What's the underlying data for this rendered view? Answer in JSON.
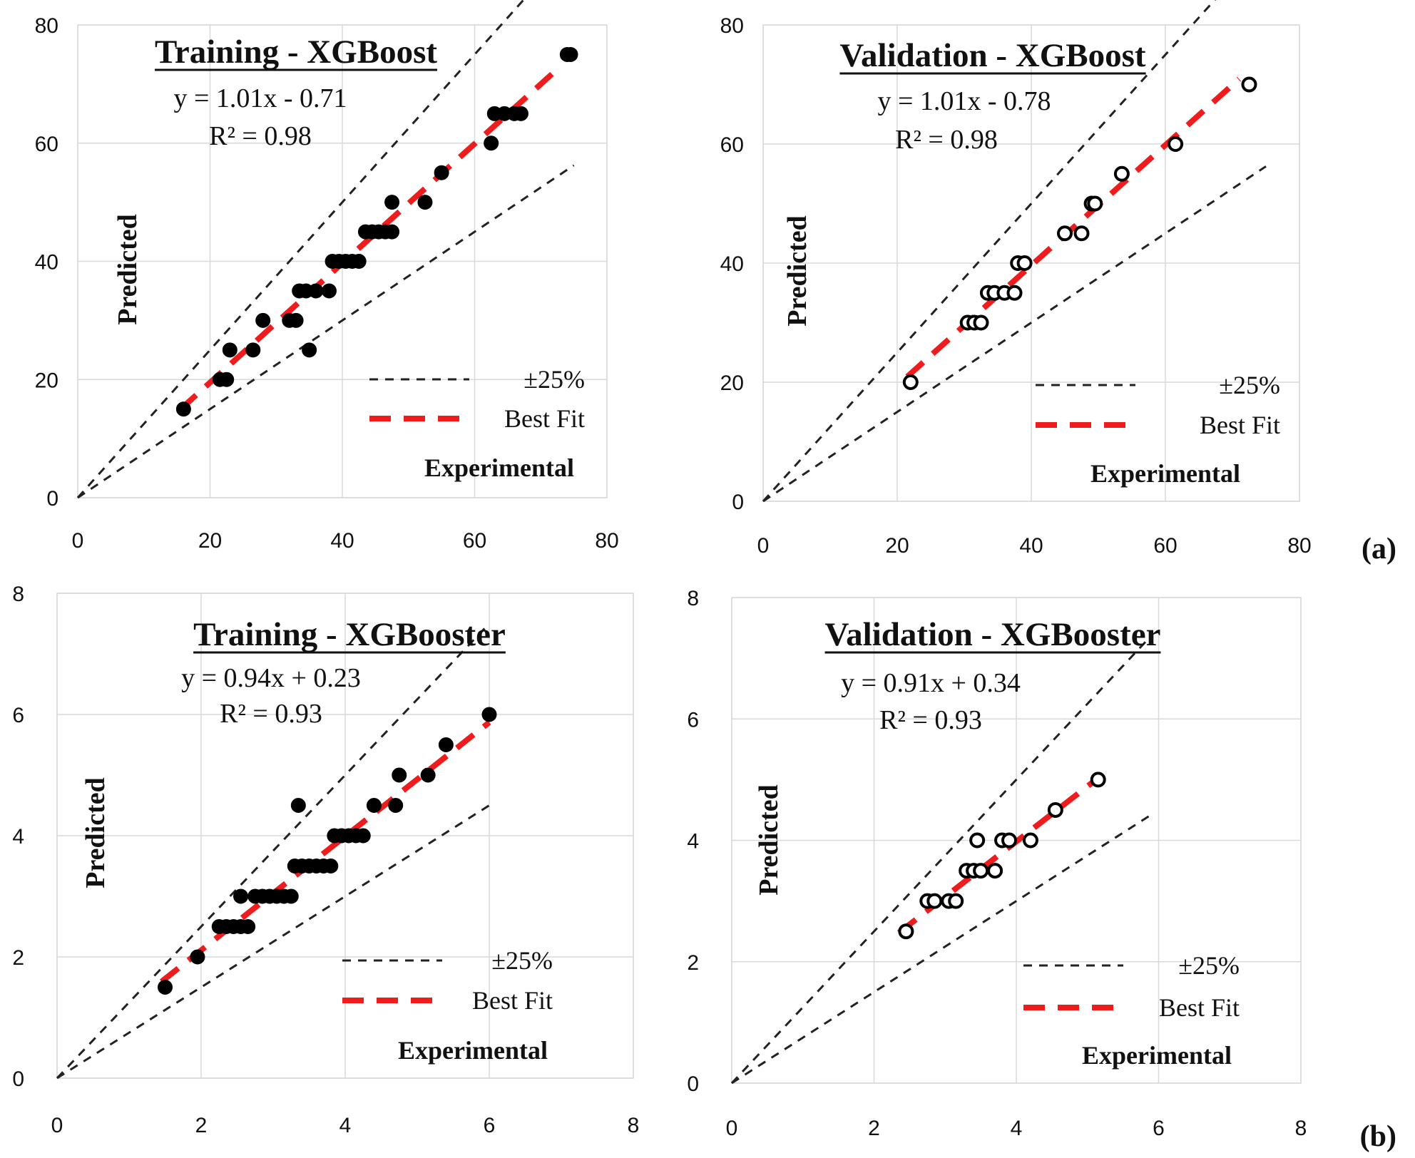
{
  "chart_data": [
    {
      "type": "scatter",
      "title": "Training - XGBoost",
      "equation": "y = 1.01x - 0.71",
      "r2": "R² = 0.98",
      "xlabel": "Experimental",
      "ylabel": "Predicted",
      "xlim": [
        0,
        80
      ],
      "ylim": [
        0,
        80
      ],
      "xticks": [
        "0",
        "20",
        "40",
        "60",
        "80"
      ],
      "yticks": [
        "0",
        "20",
        "40",
        "60",
        "80"
      ],
      "marker": "filled",
      "band_pct": 25,
      "band_x_end": 75,
      "fit": {
        "slope": 1.01,
        "intercept": -0.71,
        "x_range": [
          15.5,
          73
        ]
      },
      "legend": {
        "band_label": "±25%",
        "fit_label": "Best Fit"
      },
      "points": [
        [
          16,
          15
        ],
        [
          21.5,
          20
        ],
        [
          22.5,
          20
        ],
        [
          23,
          25
        ],
        [
          26.5,
          25
        ],
        [
          28,
          30
        ],
        [
          32,
          30
        ],
        [
          33,
          30
        ],
        [
          33.5,
          35
        ],
        [
          34.5,
          35
        ],
        [
          35,
          25
        ],
        [
          36,
          35
        ],
        [
          38,
          35
        ],
        [
          38.5,
          40
        ],
        [
          39.5,
          40
        ],
        [
          40.5,
          40
        ],
        [
          41.5,
          40
        ],
        [
          42.5,
          40
        ],
        [
          43.5,
          45
        ],
        [
          44.5,
          45
        ],
        [
          45.5,
          45
        ],
        [
          46.5,
          45
        ],
        [
          47.5,
          45
        ],
        [
          47.5,
          50
        ],
        [
          52.5,
          50
        ],
        [
          55,
          55
        ],
        [
          62.5,
          60
        ],
        [
          63,
          65
        ],
        [
          64.5,
          65
        ],
        [
          66,
          65
        ],
        [
          67,
          65
        ],
        [
          74,
          75
        ],
        [
          74.5,
          75
        ]
      ],
      "panel_label": ""
    },
    {
      "type": "scatter",
      "title": "Validation - XGBoost",
      "equation": "y = 1.01x - 0.78",
      "r2": "R² = 0.98",
      "xlabel": "Experimental",
      "ylabel": "Predicted",
      "xlim": [
        0,
        80
      ],
      "ylim": [
        0,
        80
      ],
      "xticks": [
        "0",
        "20",
        "40",
        "60",
        "80"
      ],
      "yticks": [
        "0",
        "20",
        "40",
        "60",
        "80"
      ],
      "marker": "open",
      "band_pct": 25,
      "band_x_end": 75,
      "fit": {
        "slope": 1.01,
        "intercept": -0.78,
        "x_range": [
          21.5,
          71
        ]
      },
      "legend": {
        "band_label": "±25%",
        "fit_label": "Best Fit"
      },
      "points": [
        [
          22,
          20
        ],
        [
          30.5,
          30
        ],
        [
          31.5,
          30
        ],
        [
          32.5,
          30
        ],
        [
          33.5,
          35
        ],
        [
          34.5,
          35
        ],
        [
          36,
          35
        ],
        [
          37.5,
          35
        ],
        [
          38,
          40
        ],
        [
          39,
          40
        ],
        [
          45,
          45
        ],
        [
          47.5,
          45
        ],
        [
          49,
          50
        ],
        [
          49.5,
          50
        ],
        [
          53.5,
          55
        ],
        [
          61.5,
          60
        ],
        [
          72.5,
          70
        ]
      ],
      "panel_label": "(a)"
    },
    {
      "type": "scatter",
      "title": "Training - XGBooster",
      "equation": "y = 0.94x + 0.23",
      "r2": "R² = 0.93",
      "xlabel": "Experimental",
      "ylabel": "Predicted",
      "xlim": [
        0,
        8
      ],
      "ylim": [
        0,
        8
      ],
      "xticks": [
        "0",
        "2",
        "4",
        "6",
        "8"
      ],
      "yticks": [
        "0",
        "2",
        "4",
        "6",
        "8"
      ],
      "marker": "filled",
      "band_pct": 25,
      "band_x_end": 6,
      "fit": {
        "slope": 0.94,
        "intercept": 0.23,
        "x_range": [
          1.45,
          6
        ]
      },
      "legend": {
        "band_label": "±25%",
        "fit_label": "Best Fit"
      },
      "points": [
        [
          1.5,
          1.5
        ],
        [
          1.95,
          2
        ],
        [
          2.25,
          2.5
        ],
        [
          2.35,
          2.5
        ],
        [
          2.45,
          2.5
        ],
        [
          2.55,
          2.5
        ],
        [
          2.65,
          2.5
        ],
        [
          2.55,
          3
        ],
        [
          2.75,
          3
        ],
        [
          2.85,
          3
        ],
        [
          2.95,
          3
        ],
        [
          3.05,
          3
        ],
        [
          3.15,
          3
        ],
        [
          3.25,
          3
        ],
        [
          3.3,
          3.5
        ],
        [
          3.4,
          3.5
        ],
        [
          3.5,
          3.5
        ],
        [
          3.6,
          3.5
        ],
        [
          3.7,
          3.5
        ],
        [
          3.8,
          3.5
        ],
        [
          3.35,
          4.5
        ],
        [
          3.85,
          4
        ],
        [
          3.95,
          4
        ],
        [
          4.05,
          4
        ],
        [
          4.15,
          4
        ],
        [
          4.25,
          4
        ],
        [
          4.4,
          4.5
        ],
        [
          4.7,
          4.5
        ],
        [
          4.75,
          5
        ],
        [
          5.15,
          5
        ],
        [
          5.4,
          5.5
        ],
        [
          6,
          6
        ]
      ],
      "panel_label": ""
    },
    {
      "type": "scatter",
      "title": "Validation - XGBooster",
      "equation": "y = 0.91x + 0.34",
      "r2": "R² = 0.93",
      "xlabel": "Experimental",
      "ylabel": "Predicted",
      "xlim": [
        0,
        8
      ],
      "ylim": [
        0,
        8
      ],
      "xticks": [
        "0",
        "2",
        "4",
        "6",
        "8"
      ],
      "yticks": [
        "0",
        "2",
        "4",
        "6",
        "8"
      ],
      "marker": "open",
      "band_pct": 25,
      "band_x_end": 5.9,
      "fit": {
        "slope": 0.91,
        "intercept": 0.34,
        "x_range": [
          2.35,
          5.1
        ]
      },
      "legend": {
        "band_label": "±25%",
        "fit_label": "Best Fit"
      },
      "points": [
        [
          2.45,
          2.5
        ],
        [
          2.75,
          3
        ],
        [
          2.85,
          3
        ],
        [
          3.05,
          3
        ],
        [
          3.15,
          3
        ],
        [
          3.3,
          3.5
        ],
        [
          3.4,
          3.5
        ],
        [
          3.5,
          3.5
        ],
        [
          3.7,
          3.5
        ],
        [
          3.45,
          4
        ],
        [
          3.8,
          4
        ],
        [
          3.9,
          4
        ],
        [
          4.2,
          4
        ],
        [
          4.55,
          4.5
        ],
        [
          5.15,
          5
        ]
      ],
      "panel_label": "(b)"
    }
  ]
}
